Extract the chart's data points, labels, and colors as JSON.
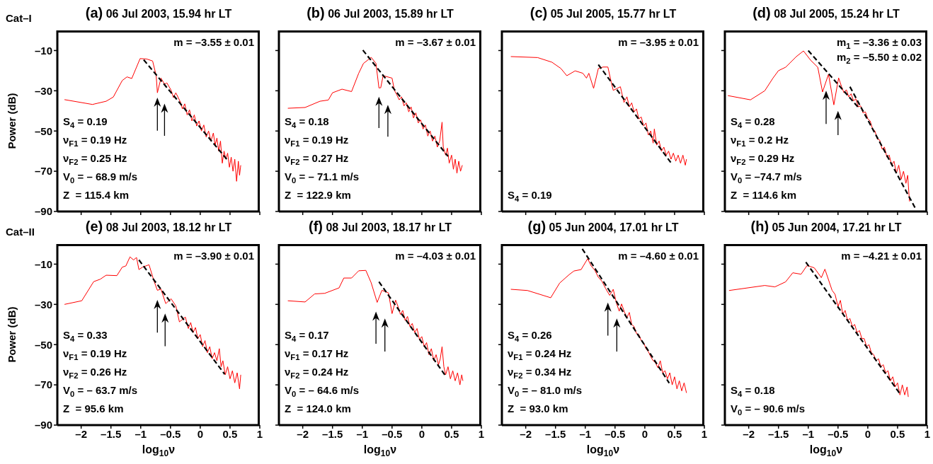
{
  "chart_data": [
    {
      "type": "line",
      "title": "(a) 06 Jul 2003, 15.94 hr LT",
      "ylabel": "Power (dB)",
      "xlim": [
        -2.4,
        1
      ],
      "ylim": [
        -90,
        0
      ],
      "xticks": [
        -2,
        -1.5,
        -1,
        -0.5,
        0,
        0.5,
        1
      ],
      "yticks": [
        {
          "value": -90,
          "label": "–90"
        },
        {
          "value": -70,
          "label": "–70"
        },
        {
          "value": -50,
          "label": "–50"
        },
        {
          "value": -30,
          "label": "–30"
        },
        {
          "value": -10,
          "label": "–10"
        }
      ],
      "tick_labels": "y",
      "marker": "none",
      "line_style": "solid",
      "annotations": [
        "Cat–I",
        "m = –3.55 ± 0.01",
        "S$_{4}$ = 0.19",
        "ν$_{F1}$ = 0.19 Hz",
        "ν$_{F2}$ = 0.25 Hz",
        "V$_{0}$ = – 68.9 m/s",
        "Z  = 115.4 km"
      ],
      "series": [
        {
          "color": "#ff0000",
          "x": [
            -2.28,
            -1.81,
            -1.58,
            -1.46,
            -1.31,
            -1.23,
            -1.15,
            -1.01,
            -0.9,
            -0.8,
            -0.74,
            -0.72,
            -0.66,
            -0.6,
            -0.56,
            -0.49,
            -0.45,
            -0.41,
            -0.33,
            -0.3,
            -0.26,
            -0.22,
            -0.18,
            -0.14,
            -0.1,
            -0.06,
            -0.02,
            0.02,
            0.06,
            0.1,
            0.14,
            0.18,
            0.22,
            0.25,
            0.28,
            0.31,
            0.34,
            0.37,
            0.4,
            0.43,
            0.46,
            0.49,
            0.52,
            0.55,
            0.58,
            0.61,
            0.64,
            0.66,
            0.68
          ],
          "values": [
            -34.4,
            -36.8,
            -35.2,
            -33.1,
            -24.9,
            -23.1,
            -23.9,
            -14,
            -14.2,
            -15.2,
            -22.4,
            -31,
            -23.7,
            -26.7,
            -26.1,
            -29.7,
            -33.4,
            -31,
            -35.8,
            -39,
            -36.5,
            -42,
            -39.5,
            -45,
            -42,
            -47.5,
            -45,
            -50,
            -47,
            -53,
            -50,
            -55,
            -51,
            -57,
            -53.5,
            -60,
            -55,
            -66,
            -60,
            -64,
            -61,
            -68,
            -63,
            -70,
            -64,
            -75,
            -65,
            -72,
            -67
          ]
        },
        {
          "type": "line",
          "color": "#000000",
          "line_style": "dashed",
          "x": [
            -0.95,
            0.47
          ],
          "values": [
            -14.6,
            -64.9
          ]
        }
      ]
    },
    {
      "type": "line",
      "title": "(b) 06 Jul 2003, 15.89 hr LT",
      "xlim": [
        -2.4,
        1
      ],
      "ylim": [
        -90,
        0
      ],
      "xticks": [
        -2,
        -1.5,
        -1,
        -0.5,
        0,
        0.5,
        1
      ],
      "yticks": [
        -90,
        -70,
        -50,
        -30,
        -10
      ],
      "tick_labels": false,
      "marker": "none",
      "line_style": "solid",
      "annotations": [
        "m = –3.67 ± 0.01",
        "S$_{4}$ = 0.18",
        "ν$_{F1}$ = 0.19 Hz",
        "ν$_{F2}$ = 0.27 Hz",
        "V$_{0}$ = – 71.1 m/s",
        "Z  = 122.9 km"
      ],
      "series": [
        {
          "color": "#ff0000",
          "x": [
            -2.25,
            -1.96,
            -1.71,
            -1.57,
            -1.5,
            -1.34,
            -1.18,
            -1.06,
            -0.98,
            -0.85,
            -0.77,
            -0.72,
            -0.69,
            -0.65,
            -0.5,
            -0.46,
            -0.42,
            -0.38,
            -0.34,
            -0.3,
            -0.26,
            -0.22,
            -0.18,
            -0.14,
            -0.1,
            -0.06,
            -0.02,
            0.02,
            0.06,
            0.1,
            0.14,
            0.18,
            0.22,
            0.26,
            0.3,
            0.34,
            0.36,
            0.4,
            0.43,
            0.46,
            0.5,
            0.53,
            0.56,
            0.59,
            0.62,
            0.65,
            0.68
          ],
          "values": [
            -38.7,
            -38.3,
            -35.2,
            -34.6,
            -31,
            -29.2,
            -30.4,
            -21.3,
            -16.4,
            -13.4,
            -16.4,
            -28.6,
            -28.5,
            -22.5,
            -23.7,
            -29.8,
            -32,
            -34.5,
            -33,
            -37.5,
            -36,
            -40.5,
            -38,
            -43.5,
            -41,
            -46,
            -44.5,
            -49,
            -47,
            -52.5,
            -50,
            -55,
            -52.5,
            -58,
            -55,
            -45.6,
            -58,
            -62,
            -58.5,
            -66,
            -62,
            -69,
            -64,
            -71,
            -65,
            -70,
            -67
          ]
        },
        {
          "type": "line",
          "color": "#000000",
          "line_style": "dashed",
          "x": [
            -0.99,
            0.44
          ],
          "values": [
            -9.8,
            -62.6
          ]
        }
      ]
    },
    {
      "type": "line",
      "title": "(c) 05 Jul 2005, 15.77 hr LT",
      "xlim": [
        -2.4,
        1
      ],
      "ylim": [
        -90,
        0
      ],
      "xticks": [
        -2,
        -1.5,
        -1,
        -0.5,
        0,
        0.5,
        1
      ],
      "yticks": [
        -90,
        -70,
        -50,
        -30,
        -10
      ],
      "tick_labels": false,
      "marker": "none",
      "line_style": "solid",
      "annotations": [
        "m = –3.95 ± 0.01",
        "S$_{4}$ = 0.19"
      ],
      "series": [
        {
          "color": "#ff0000",
          "x": [
            -2.25,
            -1.8,
            -1.56,
            -1.41,
            -1.31,
            -1.17,
            -1.04,
            -0.98,
            -0.94,
            -0.86,
            -0.78,
            -0.7,
            -0.62,
            -0.57,
            -0.53,
            -0.41,
            -0.35,
            -0.3,
            -0.26,
            -0.22,
            -0.18,
            -0.14,
            -0.1,
            -0.06,
            -0.02,
            0.02,
            0.06,
            0.1,
            0.14,
            0.16,
            0.2,
            0.24,
            0.28,
            0.32,
            0.36,
            0.4,
            0.44,
            0.48,
            0.52,
            0.56,
            0.6,
            0.64,
            0.68,
            0.7
          ],
          "values": [
            -13,
            -13.5,
            -15.8,
            -18.9,
            -22.5,
            -20.1,
            -21.3,
            -23.7,
            -21.3,
            -28.8,
            -18.9,
            -18.2,
            -18.2,
            -24.9,
            -29.8,
            -28,
            -35.8,
            -33,
            -38,
            -36,
            -40.5,
            -39,
            -44,
            -43,
            -47.5,
            -46,
            -52,
            -50,
            -56,
            -49,
            -57,
            -55,
            -60,
            -58,
            -62,
            -60,
            -64,
            -61,
            -65,
            -62,
            -66,
            -62,
            -67,
            -64
          ]
        },
        {
          "type": "line",
          "color": "#000000",
          "line_style": "dashed",
          "x": [
            -0.78,
            0.45
          ],
          "values": [
            -17,
            -66.2
          ]
        }
      ]
    },
    {
      "type": "line",
      "title": "(d) 08 Jul 2005, 15.24 hr LT",
      "xlim": [
        -2.4,
        1
      ],
      "ylim": [
        -90,
        0
      ],
      "xticks": [
        -2,
        -1.5,
        -1,
        -0.5,
        0,
        0.5,
        1
      ],
      "yticks": [
        -90,
        -70,
        -50,
        -30,
        -10
      ],
      "tick_labels": false,
      "marker": "none",
      "line_style": "solid",
      "annotations": [
        "m$_{1}$ = –3.36 ± 0.03",
        "m$_{2}$ = –5.50 ± 0.02",
        "S$_{4}$ = 0.28",
        "ν$_{F1}$ = 0.2 Hz",
        "ν$_{F2}$ = 0.29 Hz",
        "V$_{0}$ = –74.7 m/s",
        "Z  = 114.6 km"
      ],
      "series": [
        {
          "color": "#ff0000",
          "x": [
            -2.35,
            -1.97,
            -1.73,
            -1.59,
            -1.5,
            -1.38,
            -1.2,
            -1.08,
            -0.96,
            -0.84,
            -0.76,
            -0.66,
            -0.57,
            -0.49,
            -0.44,
            -0.4,
            -0.36,
            -0.32,
            -0.28,
            -0.24,
            -0.2,
            -0.16,
            -0.12,
            -0.08,
            -0.04,
            0,
            0.04,
            0.08,
            0.12,
            0.16,
            0.2,
            0.24,
            0.28,
            0.32,
            0.36,
            0.4,
            0.44,
            0.48,
            0.52,
            0.56,
            0.6,
            0.64,
            0.67,
            0.7
          ],
          "values": [
            -32.4,
            -34.5,
            -30,
            -23.6,
            -20,
            -18.3,
            -13,
            -10.2,
            -14.8,
            -18.3,
            -30.6,
            -21.8,
            -37,
            -23.6,
            -28,
            -31,
            -29.5,
            -33,
            -31.5,
            -35,
            -34,
            -38,
            -37.5,
            -41,
            -40.5,
            -44,
            -45,
            -49,
            -50,
            -54,
            -54.5,
            -59,
            -58,
            -63,
            -62,
            -67,
            -65,
            -71,
            -67,
            -74,
            -70,
            -76,
            -72,
            -85
          ]
        },
        {
          "type": "line",
          "color": "#000000",
          "line_style": "dashed",
          "x": [
            -1.0,
            -0.15
          ],
          "values": [
            -10,
            -38.6
          ]
        },
        {
          "type": "line",
          "color": "#000000",
          "line_style": "dashed",
          "x": [
            -0.3,
            0.8
          ],
          "values": [
            -28,
            -88.5
          ]
        }
      ]
    },
    {
      "type": "line",
      "title": "(e) 08 Jul 2003, 18.12 hr LT",
      "xlabel": "log$_{10}$ν",
      "ylabel": "Power (dB)",
      "xlim": [
        -2.4,
        1
      ],
      "ylim": [
        -90,
        0
      ],
      "xticks": [
        {
          "value": -2,
          "label": "–2"
        },
        {
          "value": -1.5,
          "label": "–1.5"
        },
        {
          "value": -1,
          "label": "–1"
        },
        {
          "value": -0.5,
          "label": "–0.5"
        },
        0,
        0.5,
        1
      ],
      "yticks": [
        {
          "value": -90,
          "label": "–90"
        },
        {
          "value": -70,
          "label": "–70"
        },
        {
          "value": -50,
          "label": "–50"
        },
        {
          "value": -30,
          "label": "–30"
        },
        {
          "value": -10,
          "label": "–10"
        }
      ],
      "marker": "none",
      "line_style": "solid",
      "annotations": [
        "Cat–II",
        "m = –3.90 ± 0.01",
        "S$_{4}$ = 0.33",
        "ν$_{F1}$ = 0.19 Hz",
        "ν$_{F2}$ = 0.26 Hz",
        "V$_{0}$ = – 63.7 m/s",
        "Z  = 95.6 km"
      ],
      "series": [
        {
          "color": "#ff0000",
          "x": [
            -2.28,
            -1.99,
            -1.79,
            -1.68,
            -1.58,
            -1.4,
            -1.31,
            -1.25,
            -1.18,
            -1.12,
            -1.07,
            -1.03,
            -0.97,
            -0.86,
            -0.78,
            -0.72,
            -0.66,
            -0.58,
            -0.49,
            -0.41,
            -0.35,
            -0.25,
            -0.2,
            -0.16,
            -0.12,
            -0.08,
            -0.04,
            0,
            0.04,
            0.08,
            0.12,
            0.16,
            0.2,
            0.24,
            0.28,
            0.32,
            0.35,
            0.38,
            0.42,
            0.46,
            0.5,
            0.54,
            0.58,
            0.62,
            0.66,
            0.68
          ],
          "values": [
            -30,
            -28.2,
            -18.7,
            -17.5,
            -15.5,
            -15.7,
            -11.5,
            -10.9,
            -6.4,
            -7.9,
            -6.7,
            -12.7,
            -11.5,
            -10.3,
            -18.1,
            -23,
            -22.4,
            -29.6,
            -27.2,
            -30.8,
            -38.7,
            -36.3,
            -42,
            -39,
            -44,
            -41.5,
            -47,
            -45,
            -51,
            -48,
            -54,
            -51,
            -57,
            -54,
            -58,
            -52,
            -61,
            -58,
            -65,
            -61,
            -67,
            -63,
            -69,
            -64,
            -72,
            -65
          ]
        },
        {
          "type": "line",
          "color": "#000000",
          "line_style": "dashed",
          "x": [
            -1.03,
            0.41
          ],
          "values": [
            -7.9,
            -64.7
          ]
        }
      ]
    },
    {
      "type": "line",
      "title": "(f) 08 Jul 2003, 18.17 hr LT",
      "xlabel": "log$_{10}$ν",
      "xlim": [
        -2.4,
        1
      ],
      "ylim": [
        -90,
        0
      ],
      "xticks": [
        {
          "value": -2,
          "label": "–2"
        },
        {
          "value": -1.5,
          "label": "–1.5"
        },
        {
          "value": -1,
          "label": "–1"
        },
        {
          "value": -0.5,
          "label": "–0.5"
        },
        0,
        0.5,
        1
      ],
      "yticks": [
        -90,
        -70,
        -50,
        -30,
        -10
      ],
      "tick_labels": "x",
      "marker": "none",
      "line_style": "solid",
      "annotations": [
        "m = –4.03 ± 0.01",
        "S$_{4}$ = 0.17",
        "ν$_{F1}$ = 0.17 Hz",
        "ν$_{F2}$ = 0.24 Hz",
        "V$_{0}$ = – 64.6 m/s",
        "Z  = 124.0 km"
      ],
      "series": [
        {
          "color": "#ff0000",
          "x": [
            -2.25,
            -1.96,
            -1.8,
            -1.63,
            -1.39,
            -1.31,
            -1.18,
            -1.06,
            -0.94,
            -0.85,
            -0.75,
            -0.67,
            -0.56,
            -0.5,
            -0.44,
            -0.4,
            -0.36,
            -0.32,
            -0.28,
            -0.24,
            -0.2,
            -0.16,
            -0.12,
            -0.08,
            -0.04,
            0,
            0.04,
            0.08,
            0.12,
            0.16,
            0.2,
            0.24,
            0.28,
            0.31,
            0.34,
            0.37,
            0.4,
            0.44,
            0.48,
            0.52,
            0.56,
            0.6,
            0.64,
            0.67,
            0.69
          ],
          "values": [
            -28.2,
            -28.8,
            -24.8,
            -24.5,
            -21.8,
            -16.9,
            -16.9,
            -13.3,
            -13.1,
            -19.3,
            -29,
            -23,
            -24.3,
            -34.6,
            -27.9,
            -31,
            -35,
            -33,
            -38,
            -36,
            -41,
            -39.5,
            -44,
            -42,
            -47.5,
            -46,
            -51,
            -49,
            -55,
            -52,
            -58,
            -55,
            -60,
            -57,
            -51,
            -61,
            -65,
            -61,
            -67,
            -63,
            -68,
            -64,
            -70,
            -65,
            -68
          ]
        },
        {
          "type": "line",
          "color": "#000000",
          "line_style": "dashed",
          "x": [
            -0.72,
            0.4
          ],
          "values": [
            -18.8,
            -65.6
          ]
        }
      ]
    },
    {
      "type": "line",
      "title": "(g) 05 Jun 2004, 17.01 hr LT",
      "xlabel": "log$_{10}$ν",
      "xlim": [
        -2.4,
        1
      ],
      "ylim": [
        -90,
        0
      ],
      "xticks": [
        {
          "value": -2,
          "label": "–2"
        },
        {
          "value": -1.5,
          "label": "–1.5"
        },
        {
          "value": -1,
          "label": "–1"
        },
        {
          "value": -0.5,
          "label": "–0.5"
        },
        0,
        0.5,
        1
      ],
      "yticks": [
        -90,
        -70,
        -50,
        -30,
        -10
      ],
      "tick_labels": "x",
      "marker": "none",
      "line_style": "solid",
      "annotations": [
        "m = –4.60 ± 0.01",
        "S$_{4}$ = 0.26",
        "ν$_{F1}$ = 0.24 Hz",
        "ν$_{F2}$ = 0.34 Hz",
        "V$_{0}$ = – 81.0 m/s",
        "Z  = 93.0 km"
      ],
      "series": [
        {
          "color": "#ff0000",
          "x": [
            -2.25,
            -1.97,
            -1.58,
            -1.43,
            -1.27,
            -1.19,
            -1.07,
            -0.96,
            -0.9,
            -0.84,
            -0.78,
            -0.72,
            -0.66,
            -0.59,
            -0.53,
            -0.48,
            -0.43,
            -0.39,
            -0.34,
            -0.3,
            -0.26,
            -0.22,
            -0.18,
            -0.14,
            -0.1,
            -0.06,
            -0.02,
            0.02,
            0.06,
            0.1,
            0.14,
            0.18,
            0.22,
            0.26,
            0.3,
            0.34,
            0.38,
            0.42,
            0.46,
            0.5,
            0.54,
            0.58,
            0.62,
            0.66,
            0.7
          ],
          "values": [
            -22.5,
            -23.1,
            -26.7,
            -19.4,
            -15.2,
            -13.4,
            -12.7,
            -7.3,
            -10.9,
            -13,
            -16.5,
            -18.5,
            -22,
            -25.5,
            -22.5,
            -29,
            -33.4,
            -29.8,
            -34,
            -36.5,
            -34,
            -40,
            -41,
            -44.5,
            -45,
            -48,
            -49,
            -52,
            -53.5,
            -56,
            -58,
            -59,
            -61.5,
            -58,
            -64,
            -63,
            -67,
            -64,
            -70,
            -66,
            -72,
            -68,
            -73,
            -69,
            -74
          ]
        },
        {
          "type": "line",
          "color": "#000000",
          "line_style": "dashed",
          "x": [
            -1.05,
            0.41
          ],
          "values": [
            -2.4,
            -69.1
          ]
        }
      ]
    },
    {
      "type": "line",
      "title": "(h) 05 Jun 2004, 17.21 hr LT",
      "xlabel": "log$_{10}$ν",
      "xlim": [
        -2.4,
        1
      ],
      "ylim": [
        -90,
        0
      ],
      "xticks": [
        {
          "value": -2,
          "label": "–2"
        },
        {
          "value": -1.5,
          "label": "–1.5"
        },
        {
          "value": -1,
          "label": "–1"
        },
        {
          "value": -0.5,
          "label": "–0.5"
        },
        0,
        0.5,
        1
      ],
      "yticks": [
        -90,
        -70,
        -50,
        -30,
        -10
      ],
      "tick_labels": "x",
      "marker": "none",
      "line_style": "solid",
      "annotations": [
        "m = –4.21 ± 0.01",
        "S$_{4}$ = 0.18",
        "V$_{0}$ = – 90.6 m/s"
      ],
      "series": [
        {
          "color": "#ff0000",
          "x": [
            -2.33,
            -1.73,
            -1.56,
            -1.38,
            -1.26,
            -1.12,
            -1.02,
            -0.9,
            -0.78,
            -0.72,
            -0.6,
            -0.55,
            -0.5,
            -0.46,
            -0.42,
            -0.38,
            -0.34,
            -0.3,
            -0.26,
            -0.22,
            -0.18,
            -0.14,
            -0.1,
            -0.06,
            -0.02,
            0.02,
            0.06,
            0.1,
            0.14,
            0.18,
            0.22,
            0.26,
            0.3,
            0.34,
            0.38,
            0.42,
            0.46,
            0.5,
            0.54,
            0.58,
            0.62,
            0.66,
            0.68
          ],
          "values": [
            -23.1,
            -20.6,
            -21.3,
            -18.8,
            -14.3,
            -15,
            -10.7,
            -11.8,
            -16.7,
            -12.5,
            -23,
            -25,
            -31,
            -28,
            -35,
            -33,
            -38,
            -37,
            -41,
            -40,
            -44,
            -43,
            -47,
            -47,
            -51,
            -50,
            -54,
            -55,
            -58,
            -57,
            -61,
            -60,
            -64,
            -63,
            -68,
            -66,
            -71,
            -69,
            -75,
            -70,
            -75,
            -71,
            -76
          ]
        },
        {
          "type": "line",
          "color": "#000000",
          "line_style": "dashed",
          "x": [
            -1.04,
            0.53
          ],
          "values": [
            -9,
            -74
          ]
        }
      ]
    }
  ]
}
